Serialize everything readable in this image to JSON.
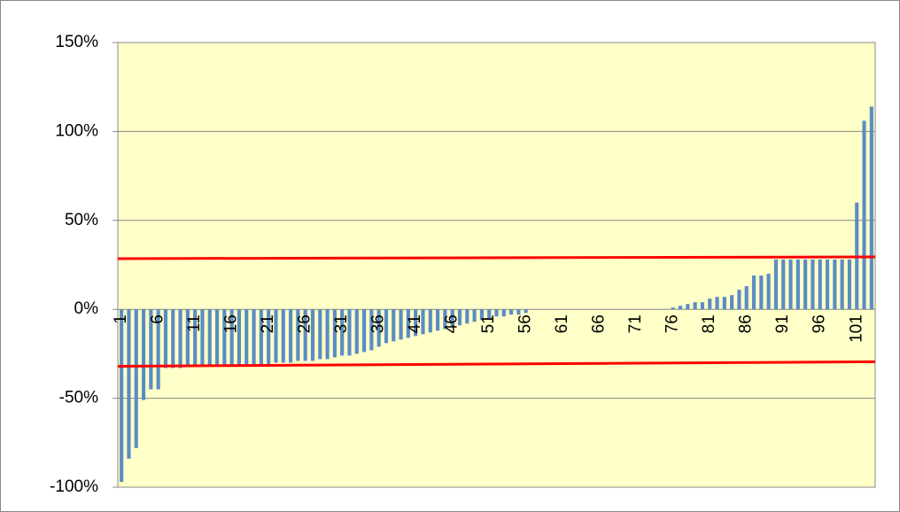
{
  "chart_data": {
    "type": "bar",
    "categories": [
      1,
      null,
      null,
      null,
      null,
      6,
      null,
      null,
      null,
      null,
      11,
      null,
      null,
      null,
      null,
      16,
      null,
      null,
      null,
      null,
      21,
      null,
      null,
      null,
      null,
      26,
      null,
      null,
      null,
      null,
      31,
      null,
      null,
      null,
      null,
      36,
      null,
      null,
      null,
      null,
      41,
      null,
      null,
      null,
      null,
      46,
      null,
      null,
      null,
      null,
      51,
      null,
      null,
      null,
      null,
      56,
      null,
      null,
      null,
      null,
      61,
      null,
      null,
      null,
      null,
      66,
      null,
      null,
      null,
      null,
      71,
      null,
      null,
      null,
      null,
      76,
      null,
      null,
      null,
      null,
      81,
      null,
      null,
      null,
      null,
      86,
      null,
      null,
      null,
      null,
      91,
      null,
      null,
      null,
      null,
      96,
      null,
      null,
      null,
      null,
      101,
      null,
      null
    ],
    "values": [
      -97,
      -84,
      -78,
      -51,
      -45,
      -45,
      -33,
      -33,
      -33,
      -32,
      -32,
      -32,
      -32,
      -32,
      -32,
      -32,
      -31,
      -31,
      -31,
      -31,
      -31,
      -30,
      -30,
      -30,
      -29,
      -29,
      -29,
      -28,
      -28,
      -27,
      -26,
      -26,
      -25,
      -24,
      -23,
      -21,
      -19,
      -18,
      -17,
      -16,
      -15,
      -14,
      -13,
      -12,
      -11,
      -10,
      -9,
      -8,
      -7,
      -6,
      -5,
      -4,
      -4,
      -3,
      -3,
      -2,
      0,
      0,
      0,
      0,
      0,
      0,
      0,
      0,
      0,
      0,
      0,
      0,
      0,
      0,
      0,
      0,
      0,
      0,
      0,
      1,
      2,
      3,
      4,
      4,
      6,
      7,
      7,
      8,
      11,
      13,
      19,
      19,
      20,
      28,
      28,
      28,
      28,
      28,
      28,
      28,
      28,
      28,
      28,
      28,
      60,
      106,
      114
    ],
    "color": "#5b8cc4",
    "reference_lines": [
      {
        "color": "#ff0000",
        "values": [
          28.5,
          29.5
        ]
      },
      {
        "color": "#ff0000",
        "values": [
          -32,
          -29.5
        ]
      }
    ],
    "ylim": [
      -100,
      150
    ],
    "yticks": [
      {
        "value": -100,
        "label": "-100%"
      },
      {
        "value": -50,
        "label": "-50%"
      },
      {
        "value": 0,
        "label": "0%"
      },
      {
        "value": 50,
        "label": "50%"
      },
      {
        "value": 100,
        "label": "100%"
      },
      {
        "value": 150,
        "label": "150%"
      }
    ],
    "grid": true
  }
}
